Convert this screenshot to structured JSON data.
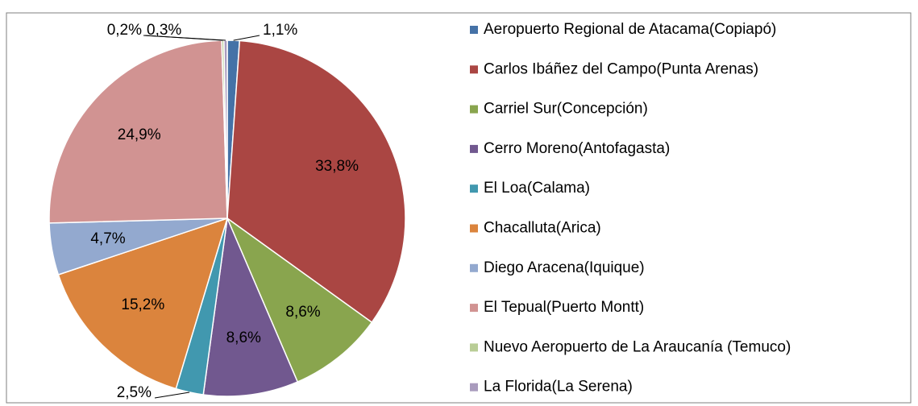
{
  "chart_data": {
    "type": "pie",
    "categories": [
      "Aeropuerto Regional de Atacama(Copiapó)",
      "Carlos Ibáñez del Campo(Punta Arenas)",
      "Carriel Sur(Concepción)",
      "Cerro Moreno(Antofagasta)",
      "El Loa(Calama)",
      "Chacalluta(Arica)",
      "Diego Aracena(Iquique)",
      "El Tepual(Puerto Montt)",
      "Nuevo Aeropuerto de La Araucanía (Temuco)",
      "La Florida(La Serena)"
    ],
    "values": [
      1.1,
      33.8,
      8.6,
      8.6,
      2.5,
      15.2,
      4.7,
      24.9,
      0.2,
      0.3
    ],
    "value_labels": [
      "1,1%",
      "33,8%",
      "8,6%",
      "8,6%",
      "2,5%",
      "15,2%",
      "4,7%",
      "24,9%",
      "0,2%",
      "0,3%"
    ],
    "colors": [
      "#4572a7",
      "#aa4643",
      "#89a54e",
      "#71588f",
      "#4198af",
      "#db843d",
      "#93a9cf",
      "#d19392",
      "#b9cd96",
      "#a99bbd"
    ],
    "legend": "right"
  }
}
